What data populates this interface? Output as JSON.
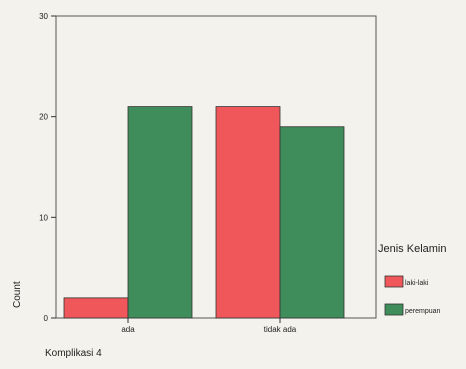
{
  "chart_data": {
    "type": "bar",
    "categories": [
      "ada",
      "tidak ada"
    ],
    "series": [
      {
        "name": "laki-laki",
        "values": [
          2,
          21
        ],
        "color": "#f0575a"
      },
      {
        "name": "perempuan",
        "values": [
          21,
          19
        ],
        "color": "#3f8d5a"
      }
    ],
    "xlabel": "Komplikasi 4",
    "ylabel": "Count",
    "ylim": [
      0,
      30
    ],
    "yticks": [
      0,
      10,
      20,
      30
    ],
    "legend_title": "Jenis Kelamin",
    "legend_position": "right",
    "grid": false
  }
}
